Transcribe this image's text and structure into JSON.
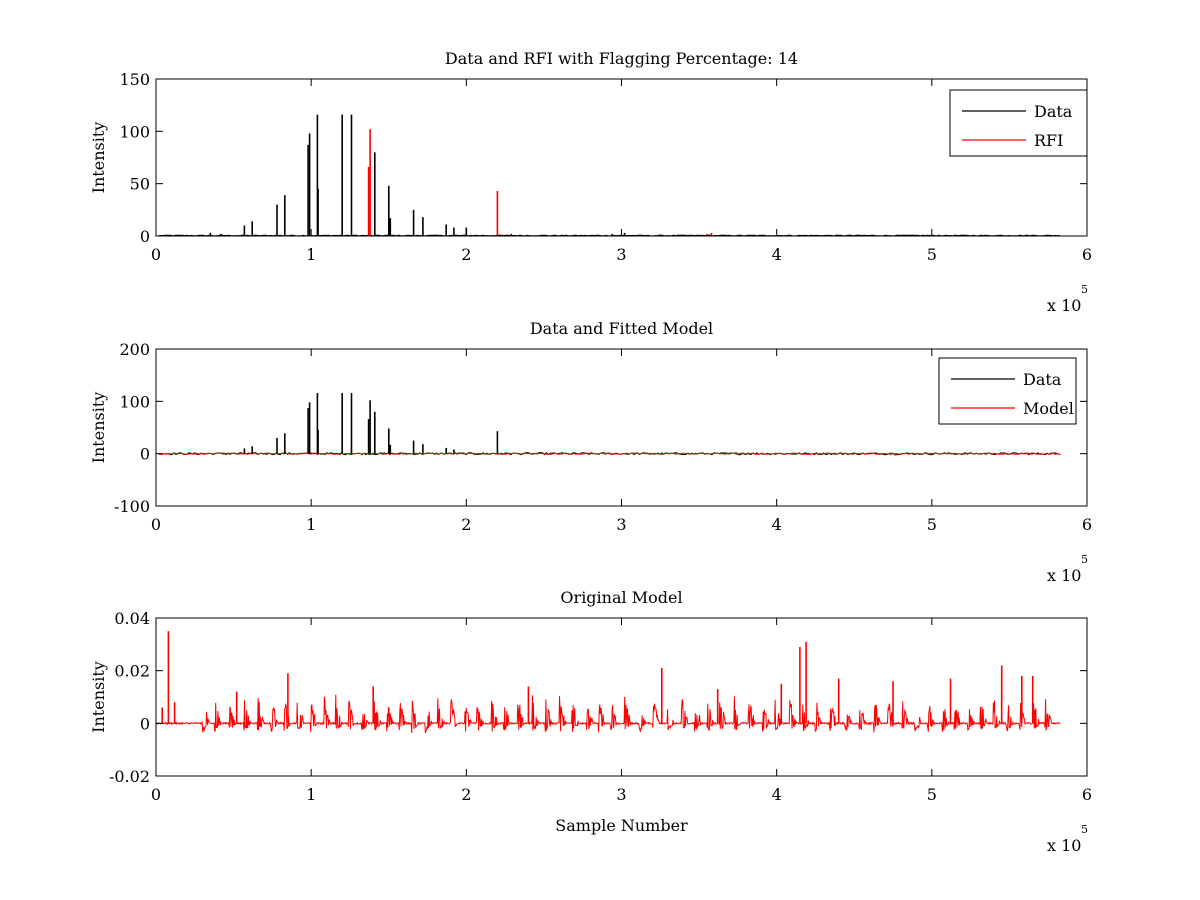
{
  "chart_data": [
    {
      "type": "line",
      "title": "Data and RFI with Flagging Percentage: 14",
      "xlabel": "",
      "ylabel": "Intensity",
      "xlim": [
        0,
        600000
      ],
      "ylim": [
        0,
        150
      ],
      "xticks": [
        "0",
        "1",
        "2",
        "3",
        "4",
        "5",
        "6"
      ],
      "yticks": [
        "0",
        "50",
        "100",
        "150"
      ],
      "x_multiplier": {
        "base": "x 10",
        "exponent": "5"
      },
      "grid": false,
      "legend": {
        "position": "top-right",
        "entries": [
          "Data",
          "RFI"
        ]
      },
      "series": [
        {
          "name": "Data",
          "color": "#000000",
          "spikes": [
            [
              35000,
              3
            ],
            [
              42000,
              2
            ],
            [
              57000,
              10
            ],
            [
              62000,
              14
            ],
            [
              78000,
              30
            ],
            [
              83000,
              39
            ],
            [
              98000,
              87
            ],
            [
              99000,
              98
            ],
            [
              104000,
              116
            ],
            [
              104500,
              45
            ],
            [
              120000,
              116
            ],
            [
              126000,
              116
            ],
            [
              141000,
              80
            ],
            [
              150000,
              48
            ],
            [
              151000,
              17
            ],
            [
              166000,
              25
            ],
            [
              172000,
              18
            ],
            [
              187000,
              11
            ],
            [
              192000,
              8
            ],
            [
              200000,
              8
            ],
            [
              229000,
              2
            ],
            [
              294000,
              2
            ],
            [
              302000,
              3
            ],
            [
              550000,
              1
            ],
            [
              575000,
              1
            ]
          ]
        },
        {
          "name": "RFI",
          "color": "#ff0000",
          "spikes": [
            [
              137000,
              66
            ],
            [
              138000,
              102
            ],
            [
              220000,
              43
            ],
            [
              358000,
              3
            ],
            [
              355000,
              2
            ],
            [
              395000,
              1
            ]
          ]
        }
      ]
    },
    {
      "type": "line",
      "title": "Data and Fitted Model",
      "xlabel": "",
      "ylabel": "Intensity",
      "xlim": [
        0,
        600000
      ],
      "ylim": [
        -100,
        200
      ],
      "xticks": [
        "0",
        "1",
        "2",
        "3",
        "4",
        "5",
        "6"
      ],
      "yticks": [
        "-100",
        "0",
        "100",
        "200"
      ],
      "x_multiplier": {
        "base": "x 10",
        "exponent": "5"
      },
      "grid": false,
      "legend": {
        "position": "top-right",
        "entries": [
          "Data",
          "Model"
        ]
      },
      "series": [
        {
          "name": "Data",
          "color": "#000000",
          "spikes": [
            [
              57000,
              10
            ],
            [
              62000,
              14
            ],
            [
              78000,
              30
            ],
            [
              83000,
              39
            ],
            [
              98000,
              87
            ],
            [
              99000,
              98
            ],
            [
              104000,
              116
            ],
            [
              104500,
              45
            ],
            [
              120000,
              116
            ],
            [
              126000,
              116
            ],
            [
              137000,
              66
            ],
            [
              138000,
              102
            ],
            [
              141000,
              80
            ],
            [
              150000,
              48
            ],
            [
              151000,
              17
            ],
            [
              166000,
              25
            ],
            [
              172000,
              18
            ],
            [
              187000,
              11
            ],
            [
              192000,
              8
            ],
            [
              220000,
              43
            ]
          ]
        },
        {
          "name": "Model",
          "color": "#ff0000",
          "spikes": []
        }
      ]
    },
    {
      "type": "line",
      "title": "Original Model",
      "xlabel": "Sample Number",
      "ylabel": "Intensity",
      "xlim": [
        0,
        600000
      ],
      "ylim": [
        -0.02,
        0.04
      ],
      "xticks": [
        "0",
        "1",
        "2",
        "3",
        "4",
        "5",
        "6"
      ],
      "yticks": [
        "-0.02",
        "0",
        "0.02",
        "0.04"
      ],
      "x_multiplier": {
        "base": "x 10",
        "exponent": "5"
      },
      "grid": false,
      "series": [
        {
          "name": "",
          "color": "#ff0000",
          "spikes": [
            [
              8000,
              0.035
            ],
            [
              4000,
              0.006
            ],
            [
              12000,
              0.008
            ],
            [
              52000,
              0.012
            ],
            [
              85000,
              0.019
            ],
            [
              140000,
              0.014
            ],
            [
              240000,
              0.014
            ],
            [
              326000,
              0.021
            ],
            [
              362000,
              0.013
            ],
            [
              403000,
              0.015
            ],
            [
              415000,
              0.029
            ],
            [
              419000,
              0.031
            ],
            [
              440000,
              0.017
            ],
            [
              475000,
              0.016
            ],
            [
              512000,
              0.017
            ],
            [
              545000,
              0.022
            ],
            [
              558000,
              0.018
            ],
            [
              565000,
              0.018
            ]
          ]
        }
      ]
    }
  ]
}
